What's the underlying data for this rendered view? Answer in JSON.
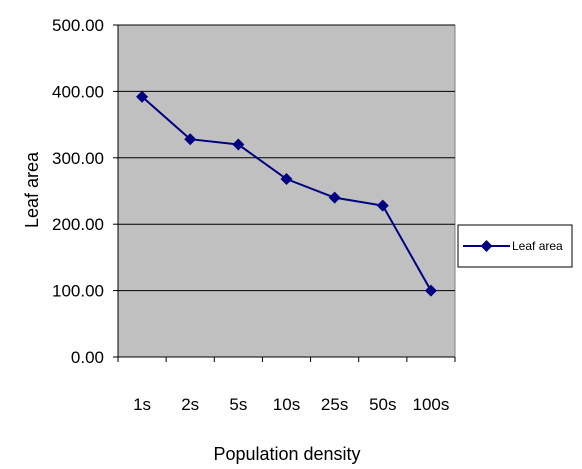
{
  "chart_data": {
    "type": "line",
    "xlabel": "Population density",
    "ylabel": "Leaf area",
    "categories": [
      "1s",
      "2s",
      "5s",
      "10s",
      "25s",
      "50s",
      "100s"
    ],
    "ylim": [
      0,
      500
    ],
    "yticks": [
      "0.00",
      "100.00",
      "200.00",
      "300.00",
      "400.00",
      "500.00"
    ],
    "grid": "horizontal",
    "legend_position": "right",
    "series": [
      {
        "name": "Leaf area",
        "values": [
          392,
          328,
          320,
          268,
          240,
          228,
          100
        ],
        "color": "#000080",
        "marker": "diamond"
      }
    ],
    "plot_background": "#c0c0c0",
    "gridline_color": "#000000"
  }
}
